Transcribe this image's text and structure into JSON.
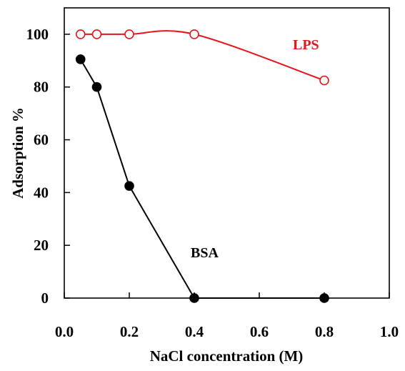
{
  "chart_data": {
    "type": "line",
    "xlabel": "NaCl concentration (M)",
    "ylabel": "Adsorption %",
    "xlim": [
      0.0,
      1.0
    ],
    "ylim": [
      0,
      110
    ],
    "x_ticks": [
      "0.0",
      "0.2",
      "0.4",
      "0.6",
      "0.8",
      "1.0"
    ],
    "y_ticks": [
      "0",
      "20",
      "40",
      "60",
      "80",
      "100"
    ],
    "grid": false,
    "legend": "none",
    "series": [
      {
        "name": "LPS",
        "color": "#e8141a",
        "marker": "open-circle",
        "x": [
          0.05,
          0.1,
          0.2,
          0.4,
          0.8
        ],
        "y": [
          100,
          100,
          100,
          100,
          82.5
        ],
        "smooth": true
      },
      {
        "name": "BSA",
        "color": "#000000",
        "marker": "filled-circle",
        "x": [
          0.05,
          0.1,
          0.2,
          0.4,
          0.8
        ],
        "y": [
          90.5,
          80,
          42.5,
          0,
          0
        ],
        "smooth": false
      }
    ]
  }
}
